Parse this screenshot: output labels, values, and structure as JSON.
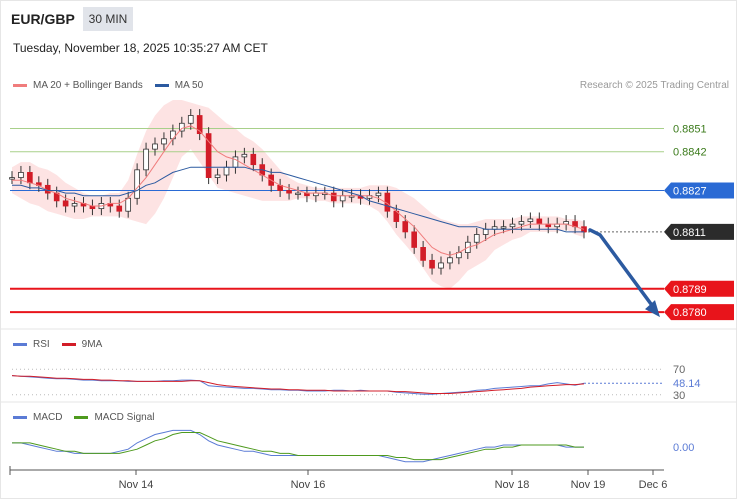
{
  "header": {
    "symbol": "EUR/GBP",
    "timeframe": "30 MIN",
    "datetime": "Tuesday, November 18, 2025 10:35:27 AM CET",
    "credit": "Research © 2025 Trading Central"
  },
  "colors": {
    "ma20": "#f07c7c",
    "band_fill": "#fde0e0",
    "ma50": "#2c5aa0",
    "support": "#e8141b",
    "resistance_green": "#a8d08a",
    "pivot": "#2a6ad4",
    "current": "#2b2b2b",
    "candle": "#d21d28",
    "arrow": "#2c5aa0",
    "rsi": "#5b7bd5",
    "rsi_ma": "#d21d28",
    "macd": "#5b7bd5",
    "macd_signal": "#4e9a1e"
  },
  "chart_data": [
    {
      "type": "line",
      "title": "",
      "legend": [
        {
          "name": "MA 20 + Bollinger Bands",
          "color": "#f07c7c"
        },
        {
          "name": "MA 50",
          "color": "#2c5aa0"
        }
      ],
      "ylim": [
        0.8775,
        0.8862
      ],
      "x_ticks": [
        "Nov 14",
        "Nov 16",
        "Nov 18",
        "Nov 19",
        "Dec 6"
      ],
      "levels": [
        {
          "label": "0.8851",
          "value": 0.8851,
          "kind": "resistance"
        },
        {
          "label": "0.8842",
          "value": 0.8842,
          "kind": "resistance"
        },
        {
          "label": "0.8827",
          "value": 0.8827,
          "kind": "pivot"
        },
        {
          "label": "0.8811",
          "value": 0.8811,
          "kind": "current"
        },
        {
          "label": "0.8789",
          "value": 0.8789,
          "kind": "support"
        },
        {
          "label": "0.8780",
          "value": 0.878,
          "kind": "support"
        }
      ],
      "price_series": [
        0.8832,
        0.8834,
        0.883,
        0.8829,
        0.8826,
        0.8823,
        0.8821,
        0.8822,
        0.8821,
        0.882,
        0.8822,
        0.8821,
        0.8819,
        0.8824,
        0.8835,
        0.8843,
        0.8845,
        0.8847,
        0.885,
        0.8853,
        0.8856,
        0.8849,
        0.8832,
        0.8833,
        0.8836,
        0.884,
        0.8841,
        0.8837,
        0.8833,
        0.8829,
        0.8827,
        0.8826,
        0.8826,
        0.8825,
        0.8826,
        0.8826,
        0.8823,
        0.8825,
        0.8825,
        0.8824,
        0.8825,
        0.8826,
        0.8819,
        0.8815,
        0.8811,
        0.8805,
        0.88,
        0.8797,
        0.8799,
        0.8801,
        0.8803,
        0.8807,
        0.881,
        0.8812,
        0.8813,
        0.8813,
        0.8814,
        0.8815,
        0.8816,
        0.8814,
        0.8813,
        0.8814,
        0.8815,
        0.8813,
        0.8811
      ],
      "ma20": [
        0.8831,
        0.8831,
        0.883,
        0.8829,
        0.8827,
        0.8826,
        0.8824,
        0.8823,
        0.8822,
        0.8821,
        0.8821,
        0.8822,
        0.8822,
        0.8824,
        0.8828,
        0.8832,
        0.8837,
        0.8842,
        0.8847,
        0.8851,
        0.8852,
        0.885,
        0.8846,
        0.8842,
        0.884,
        0.8839,
        0.8837,
        0.8835,
        0.8833,
        0.8831,
        0.8829,
        0.8828,
        0.8827,
        0.8826,
        0.8826,
        0.8826,
        0.8825,
        0.8825,
        0.8825,
        0.8825,
        0.8825,
        0.8824,
        0.8822,
        0.8819,
        0.8816,
        0.8813,
        0.8809,
        0.8805,
        0.8803,
        0.8802,
        0.8803,
        0.8805,
        0.8806,
        0.8808,
        0.881,
        0.8811,
        0.8812,
        0.8813,
        0.8814,
        0.8814,
        0.8814,
        0.8814,
        0.8814,
        0.8813,
        0.8812
      ],
      "ma50": [
        0.8829,
        0.8829,
        0.8828,
        0.8828,
        0.8827,
        0.8827,
        0.8826,
        0.8826,
        0.8825,
        0.8825,
        0.8825,
        0.8825,
        0.8825,
        0.8826,
        0.8827,
        0.8829,
        0.883,
        0.8832,
        0.8834,
        0.8835,
        0.8836,
        0.8836,
        0.8836,
        0.8836,
        0.8836,
        0.8836,
        0.8836,
        0.8835,
        0.8835,
        0.8834,
        0.8834,
        0.8833,
        0.8832,
        0.8831,
        0.883,
        0.8829,
        0.8828,
        0.8827,
        0.8826,
        0.8825,
        0.8823,
        0.8822,
        0.8821,
        0.882,
        0.8819,
        0.8818,
        0.8817,
        0.8816,
        0.8815,
        0.8814,
        0.8813,
        0.8813,
        0.8813,
        0.8812,
        0.8812,
        0.8812,
        0.8812,
        0.8812,
        0.8812,
        0.8812,
        0.8812,
        0.8812,
        0.8811,
        0.8811,
        0.8811
      ],
      "band_upper": [
        0.8836,
        0.8838,
        0.8838,
        0.8836,
        0.8835,
        0.8833,
        0.883,
        0.8828,
        0.8826,
        0.8825,
        0.8825,
        0.8826,
        0.8826,
        0.8831,
        0.8841,
        0.885,
        0.8856,
        0.886,
        0.8862,
        0.8862,
        0.8861,
        0.886,
        0.8859,
        0.8856,
        0.8853,
        0.8851,
        0.8848,
        0.8846,
        0.8843,
        0.8839,
        0.8835,
        0.8832,
        0.883,
        0.8829,
        0.8828,
        0.8828,
        0.8828,
        0.8828,
        0.8828,
        0.8828,
        0.8829,
        0.8829,
        0.8829,
        0.8828,
        0.8826,
        0.8824,
        0.8821,
        0.8818,
        0.8816,
        0.8815,
        0.8814,
        0.8814,
        0.8815,
        0.8816,
        0.8816,
        0.8816,
        0.8816,
        0.8817,
        0.8817,
        0.8817,
        0.8817,
        0.8817,
        0.8816,
        0.8816,
        0.8815
      ],
      "band_lower": [
        0.8826,
        0.8824,
        0.8822,
        0.8821,
        0.8819,
        0.8818,
        0.8817,
        0.8816,
        0.8816,
        0.8817,
        0.8817,
        0.8817,
        0.8817,
        0.8816,
        0.8815,
        0.8814,
        0.8818,
        0.8824,
        0.8832,
        0.884,
        0.8843,
        0.8838,
        0.8833,
        0.8828,
        0.8827,
        0.8826,
        0.8825,
        0.8824,
        0.8823,
        0.8823,
        0.8823,
        0.8823,
        0.8824,
        0.8824,
        0.8823,
        0.8823,
        0.8822,
        0.8822,
        0.8822,
        0.8822,
        0.8821,
        0.8819,
        0.8815,
        0.881,
        0.8806,
        0.8802,
        0.8797,
        0.8792,
        0.879,
        0.8789,
        0.8792,
        0.8796,
        0.8798,
        0.88,
        0.8804,
        0.8806,
        0.8808,
        0.8809,
        0.8811,
        0.8811,
        0.8811,
        0.8811,
        0.8812,
        0.881,
        0.8809
      ],
      "projection": [
        0.8811,
        0.878
      ]
    },
    {
      "type": "line",
      "title": "",
      "legend": [
        {
          "name": "RSI",
          "color": "#5b7bd5"
        },
        {
          "name": "9MA",
          "color": "#d21d28"
        }
      ],
      "ylim": [
        25,
        100
      ],
      "y_ticks": [
        {
          "label": "70",
          "value": 70
        },
        {
          "label": "30",
          "value": 30
        }
      ],
      "last_label": "48.14",
      "last_value": 48.14,
      "rsi": [
        60,
        59,
        58,
        57,
        56,
        55,
        55,
        54,
        53,
        53,
        52,
        52,
        52,
        51,
        51,
        51,
        51,
        52,
        52,
        53,
        53,
        52,
        44,
        43,
        42,
        41,
        40,
        40,
        39,
        38,
        38,
        37,
        37,
        36,
        36,
        36,
        37,
        37,
        36,
        37,
        36,
        36,
        36,
        34,
        33,
        32,
        31,
        31,
        32,
        33,
        34,
        35,
        37,
        38,
        40,
        41,
        42,
        43,
        44,
        44,
        47,
        49,
        47,
        45,
        48.14
      ],
      "rsi_ma": [
        60,
        59,
        59,
        58,
        57,
        56,
        56,
        55,
        54,
        54,
        53,
        53,
        52,
        52,
        51,
        51,
        51,
        51,
        51,
        51,
        52,
        52,
        49,
        46,
        44,
        43,
        42,
        41,
        40,
        39,
        39,
        38,
        38,
        37,
        37,
        37,
        36,
        36,
        36,
        36,
        36,
        36,
        36,
        35,
        35,
        34,
        33,
        32,
        32,
        32,
        33,
        34,
        35,
        36,
        37,
        38,
        39,
        40,
        42,
        43,
        44,
        45,
        46,
        46,
        47
      ]
    },
    {
      "type": "line",
      "title": "",
      "legend": [
        {
          "name": "MACD",
          "color": "#5b7bd5"
        },
        {
          "name": "MACD Signal",
          "color": "#4e9a1e"
        }
      ],
      "ylim": [
        -0.001,
        0.0012
      ],
      "y_ticks": [
        {
          "label": "0.00",
          "value": 0
        }
      ],
      "macd": [
        0.0002,
        0.0002,
        0.0001,
        0.0,
        -0.0001,
        -0.0002,
        -0.0002,
        -0.0003,
        -0.0003,
        -0.0003,
        -0.0003,
        -0.0003,
        -0.0002,
        -0.0001,
        0.0002,
        0.0004,
        0.0006,
        0.0007,
        0.0008,
        0.0008,
        0.0008,
        0.0006,
        0.0003,
        0.0001,
        -0.0,
        -0.0001,
        -0.0002,
        -0.0002,
        -0.0003,
        -0.0004,
        -0.0004,
        -0.0004,
        -0.0004,
        -0.0004,
        -0.0004,
        -0.0004,
        -0.0004,
        -0.0004,
        -0.0004,
        -0.0004,
        -0.0004,
        -0.0004,
        -0.0005,
        -0.0006,
        -0.0007,
        -0.0007,
        -0.0007,
        -0.0006,
        -0.0005,
        -0.0004,
        -0.0003,
        -0.0002,
        -0.0001,
        0.0,
        0.0,
        0.0001,
        0.0001,
        0.0001,
        0.0001,
        0.0001,
        0.0001,
        0.0001,
        0.0,
        0.0,
        0.0
      ],
      "macd_signal": [
        0.0002,
        0.0002,
        0.0002,
        0.0001,
        0.0,
        -0.0001,
        -0.0002,
        -0.0002,
        -0.0003,
        -0.0003,
        -0.0003,
        -0.0003,
        -0.0003,
        -0.0002,
        -0.0001,
        0.0001,
        0.0003,
        0.0004,
        0.0006,
        0.0007,
        0.0007,
        0.0007,
        0.0005,
        0.0003,
        0.0002,
        0.0001,
        -0.0,
        -0.0001,
        -0.0002,
        -0.0002,
        -0.0003,
        -0.0003,
        -0.0004,
        -0.0004,
        -0.0004,
        -0.0004,
        -0.0004,
        -0.0004,
        -0.0004,
        -0.0004,
        -0.0004,
        -0.0004,
        -0.0004,
        -0.0005,
        -0.0005,
        -0.0006,
        -0.0006,
        -0.0006,
        -0.0006,
        -0.0005,
        -0.0004,
        -0.0003,
        -0.0002,
        -0.0001,
        -0.0001,
        0.0,
        0.0,
        0.0001,
        0.0001,
        0.0001,
        0.0001,
        0.0001,
        0.0001,
        0.0,
        0.0
      ]
    }
  ]
}
